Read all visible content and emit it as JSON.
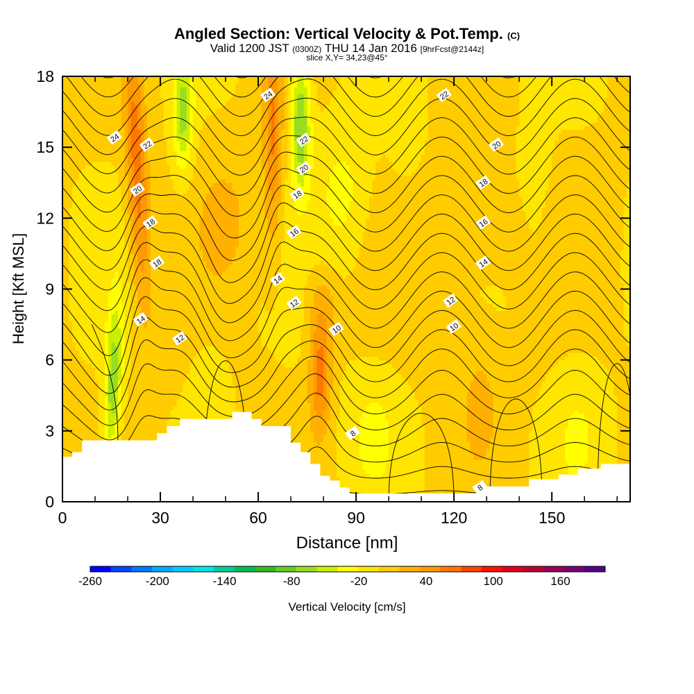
{
  "title": {
    "main": "Angled Section: Vertical Velocity & Pot.Temp.",
    "copyright": "(C)",
    "valid_prefix": "Valid 1200 JST",
    "utc": "(0300Z)",
    "valid_date": "THU 14 Jan 2016",
    "fcst": "[9hrFcst@2144z]",
    "slice": "slice X,Y= 34,23@45°"
  },
  "chart_data": {
    "type": "heatmap",
    "xlabel": "Distance [nm]",
    "ylabel": "Height [Kft MSL]",
    "xlim": [
      0,
      174
    ],
    "ylim": [
      0,
      18
    ],
    "x_ticks": [
      0,
      30,
      60,
      90,
      120,
      150
    ],
    "y_ticks": [
      0,
      3,
      6,
      9,
      12,
      15,
      18
    ],
    "colorbar": {
      "label": "Vertical Velocity [cm/s]",
      "range": [
        -260,
        200
      ],
      "step": 20,
      "tick_labels": [
        "-260",
        "-200",
        "-140",
        "-80",
        "-20",
        "40",
        "100",
        "160"
      ],
      "tick_values": [
        -260,
        -200,
        -140,
        -80,
        -20,
        40,
        100,
        160
      ],
      "colors": [
        "#0000ff",
        "#0044ff",
        "#0077ff",
        "#00aaff",
        "#00ccff",
        "#00e6e6",
        "#00cc99",
        "#00bb55",
        "#33bb22",
        "#66cc22",
        "#99dd22",
        "#ccee00",
        "#ffff00",
        "#ffe500",
        "#ffcc00",
        "#ffb000",
        "#ff9900",
        "#ff7700",
        "#ff4400",
        "#ff1100",
        "#dd0022",
        "#bb0033",
        "#990055",
        "#770077",
        "#550088"
      ]
    },
    "field_note": "vertical velocity mostly -20 to 40 cm/s; maxima ~100 near x=25 and x=65 (upper levels) and x=79 (low levels); minima ~-80 near x=15, 37, 73",
    "velocity_features": [
      {
        "x": 25,
        "y": 16.5,
        "value": 100
      },
      {
        "x": 22,
        "y": 11,
        "value": 80
      },
      {
        "x": 65,
        "y": 15.5,
        "value": 90
      },
      {
        "x": 79,
        "y": 5.8,
        "value": 90
      },
      {
        "x": 15,
        "y": 4.5,
        "value": -60
      },
      {
        "x": 37,
        "y": 16.5,
        "value": -60
      },
      {
        "x": 73,
        "y": 16,
        "value": -80
      }
    ],
    "theta_labels": [
      {
        "text": "24",
        "x": 16,
        "y": 15.4
      },
      {
        "text": "22",
        "x": 26,
        "y": 15.1
      },
      {
        "text": "20",
        "x": 23,
        "y": 13.2
      },
      {
        "text": "18",
        "x": 27,
        "y": 11.8
      },
      {
        "text": "18",
        "x": 29,
        "y": 10.1
      },
      {
        "text": "14",
        "x": 24,
        "y": 7.7
      },
      {
        "text": "12",
        "x": 36,
        "y": 6.9
      },
      {
        "text": "24",
        "x": 63,
        "y": 17.2
      },
      {
        "text": "22",
        "x": 74,
        "y": 15.3
      },
      {
        "text": "20",
        "x": 74,
        "y": 14.1
      },
      {
        "text": "18",
        "x": 72,
        "y": 13.0
      },
      {
        "text": "16",
        "x": 71,
        "y": 11.4
      },
      {
        "text": "14",
        "x": 66,
        "y": 9.4
      },
      {
        "text": "12",
        "x": 71,
        "y": 8.4
      },
      {
        "text": "10",
        "x": 84,
        "y": 7.3
      },
      {
        "text": "8",
        "x": 89,
        "y": 2.9
      },
      {
        "text": "22",
        "x": 117,
        "y": 17.2
      },
      {
        "text": "20",
        "x": 133,
        "y": 15.1
      },
      {
        "text": "18",
        "x": 129,
        "y": 13.5
      },
      {
        "text": "16",
        "x": 129,
        "y": 11.8
      },
      {
        "text": "14",
        "x": 129,
        "y": 10.1
      },
      {
        "text": "12",
        "x": 119,
        "y": 8.5
      },
      {
        "text": "10",
        "x": 120,
        "y": 7.4
      },
      {
        "text": "8",
        "x": 128,
        "y": 0.6
      }
    ],
    "terrain": [
      [
        0,
        1.9
      ],
      [
        3,
        1.9
      ],
      [
        3,
        2.1
      ],
      [
        6,
        2.1
      ],
      [
        6,
        2.6
      ],
      [
        29,
        2.6
      ],
      [
        29,
        2.9
      ],
      [
        32,
        2.9
      ],
      [
        32,
        3.2
      ],
      [
        36,
        3.2
      ],
      [
        36,
        3.5
      ],
      [
        52,
        3.5
      ],
      [
        52,
        3.8
      ],
      [
        58,
        3.8
      ],
      [
        58,
        3.5
      ],
      [
        61,
        3.5
      ],
      [
        61,
        3.2
      ],
      [
        70,
        3.2
      ],
      [
        70,
        2.5
      ],
      [
        73,
        2.5
      ],
      [
        73,
        2.1
      ],
      [
        76,
        2.1
      ],
      [
        76,
        1.6
      ],
      [
        79,
        1.6
      ],
      [
        79,
        1.1
      ],
      [
        82,
        1.1
      ],
      [
        82,
        0.9
      ],
      [
        85,
        0.9
      ],
      [
        85,
        0.6
      ],
      [
        88,
        0.6
      ],
      [
        88,
        0.35
      ],
      [
        127,
        0.35
      ],
      [
        127,
        0.65
      ],
      [
        143,
        0.65
      ],
      [
        143,
        0.95
      ],
      [
        152,
        0.95
      ],
      [
        152,
        1.15
      ],
      [
        158,
        1.15
      ],
      [
        158,
        1.4
      ],
      [
        165,
        1.4
      ],
      [
        165,
        1.6
      ],
      [
        174,
        1.6
      ]
    ]
  }
}
